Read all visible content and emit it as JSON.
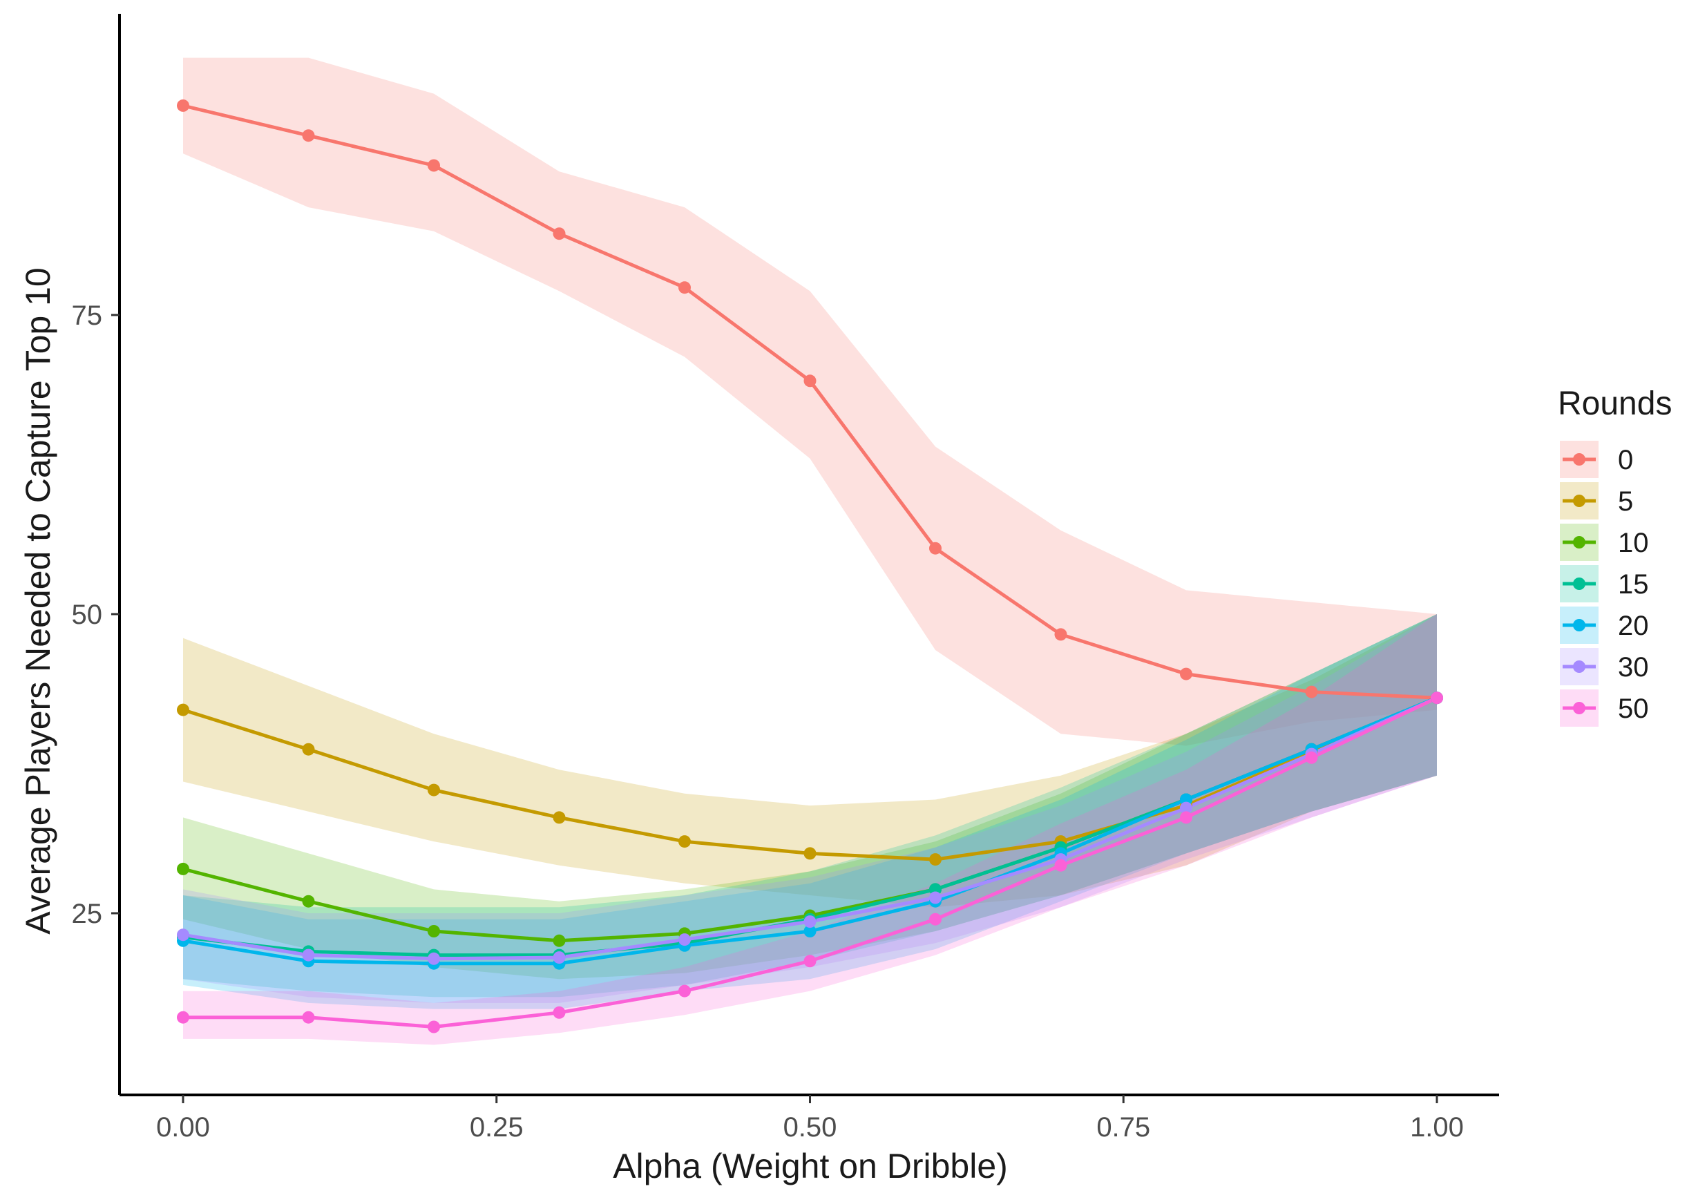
{
  "chart_data": {
    "type": "line",
    "title": "",
    "xlabel": "Alpha (Weight on Dribble)",
    "ylabel": "Average Players Needed to Capture Top 10",
    "xlim": [
      -0.05,
      1.05
    ],
    "ylim": [
      10,
      101
    ],
    "x": [
      0.0,
      0.1,
      0.2,
      0.3,
      0.4,
      0.5,
      0.6,
      0.7,
      0.8,
      0.9,
      1.0
    ],
    "x_ticks": [
      0.0,
      0.25,
      0.5,
      0.75,
      1.0
    ],
    "x_tick_labels": [
      "0.00",
      "0.25",
      "0.50",
      "0.75",
      "1.00"
    ],
    "y_ticks": [
      25,
      50,
      75
    ],
    "y_tick_labels": [
      "25",
      "50",
      "75"
    ],
    "legend": {
      "title": "Rounds",
      "position": "right"
    },
    "series": [
      {
        "name": "0",
        "color": "#F8766D",
        "values": [
          92.5,
          90.0,
          87.5,
          81.8,
          77.3,
          69.5,
          55.5,
          48.3,
          45.0,
          43.5,
          43.0
        ],
        "lower": [
          88.5,
          84.0,
          82.0,
          77.0,
          71.5,
          63.0,
          47.0,
          40.0,
          39.0,
          41.0,
          42.0
        ],
        "upper": [
          96.5,
          96.5,
          93.5,
          87.0,
          84.0,
          77.0,
          64.0,
          57.0,
          52.0,
          51.0,
          50.0
        ]
      },
      {
        "name": "5",
        "color": "#C49A00",
        "values": [
          42.0,
          38.7,
          35.3,
          33.0,
          31.0,
          30.0,
          29.5,
          31.0,
          34.0,
          38.5,
          43.0
        ],
        "lower": [
          36.0,
          33.5,
          31.0,
          29.0,
          27.5,
          26.5,
          25.5,
          26.5,
          29.0,
          33.5,
          36.5
        ],
        "upper": [
          48.0,
          44.0,
          40.0,
          37.0,
          35.0,
          34.0,
          34.5,
          36.5,
          40.0,
          44.5,
          50.0
        ]
      },
      {
        "name": "10",
        "color": "#53B400",
        "values": [
          28.7,
          26.0,
          23.5,
          22.7,
          23.3,
          24.8,
          27.0,
          30.5,
          34.5,
          38.7,
          43.0
        ],
        "lower": [
          24.5,
          22.0,
          20.5,
          19.5,
          20.0,
          21.5,
          23.5,
          26.5,
          30.0,
          33.5,
          36.5
        ],
        "upper": [
          33.0,
          30.0,
          27.0,
          26.0,
          27.0,
          28.5,
          31.0,
          35.0,
          40.0,
          45.0,
          50.0
        ]
      },
      {
        "name": "15",
        "color": "#00C094",
        "values": [
          23.0,
          21.8,
          21.5,
          21.5,
          22.5,
          24.5,
          27.0,
          30.5,
          34.5,
          38.7,
          43.0
        ],
        "lower": [
          19.5,
          18.5,
          18.0,
          18.0,
          19.0,
          21.0,
          23.5,
          26.5,
          30.0,
          33.5,
          36.5
        ],
        "upper": [
          26.5,
          25.5,
          25.5,
          25.5,
          26.5,
          28.5,
          31.5,
          35.5,
          40.0,
          45.0,
          50.0
        ]
      },
      {
        "name": "20",
        "color": "#00B6EB",
        "values": [
          22.7,
          21.0,
          20.8,
          20.8,
          22.3,
          23.5,
          26.0,
          30.0,
          34.5,
          38.7,
          43.0
        ],
        "lower": [
          19.0,
          17.5,
          17.0,
          17.0,
          18.5,
          19.5,
          22.0,
          26.0,
          30.0,
          33.5,
          36.5
        ],
        "upper": [
          26.5,
          24.5,
          24.5,
          24.5,
          26.0,
          27.5,
          30.5,
          34.5,
          39.5,
          45.0,
          50.0
        ]
      },
      {
        "name": "30",
        "color": "#A58AFF",
        "values": [
          23.2,
          21.5,
          21.2,
          21.3,
          22.8,
          24.3,
          26.3,
          29.5,
          33.8,
          38.3,
          43.0
        ],
        "lower": [
          19.5,
          18.0,
          17.5,
          17.5,
          19.0,
          20.5,
          22.5,
          25.5,
          29.5,
          33.0,
          36.5
        ],
        "upper": [
          27.0,
          25.0,
          25.0,
          25.0,
          26.5,
          28.0,
          30.5,
          34.0,
          38.5,
          44.0,
          50.0
        ]
      },
      {
        "name": "50",
        "color": "#FB61D7",
        "values": [
          16.3,
          16.3,
          15.5,
          16.7,
          18.5,
          21.0,
          24.5,
          29.0,
          33.0,
          38.0,
          43.0
        ],
        "lower": [
          14.5,
          14.5,
          14.0,
          15.0,
          16.5,
          18.5,
          21.5,
          25.5,
          29.0,
          33.0,
          36.5
        ],
        "upper": [
          18.5,
          18.5,
          17.5,
          18.5,
          20.5,
          23.5,
          27.5,
          32.5,
          37.0,
          43.0,
          50.0
        ]
      }
    ]
  }
}
